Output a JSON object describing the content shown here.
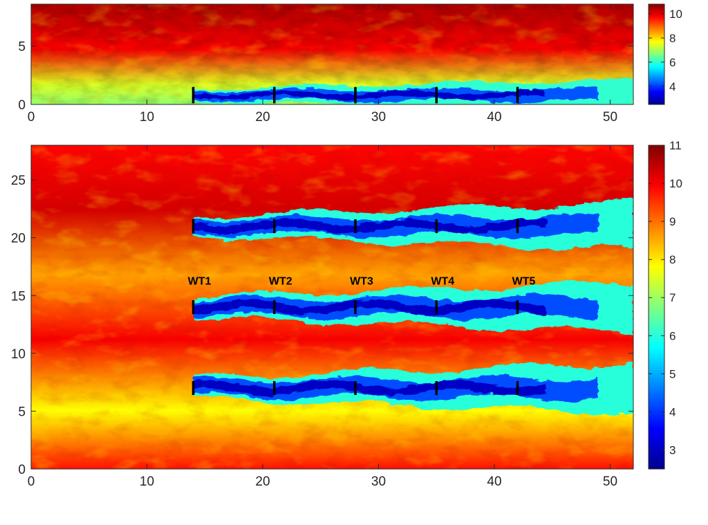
{
  "colors": {
    "scale": [
      "#00008f",
      "#0000ff",
      "#0080ff",
      "#00ffff",
      "#80ff80",
      "#ffff00",
      "#ff8000",
      "#ff0000",
      "#800000"
    ],
    "axis": "#262626",
    "turbine": "#000000"
  },
  "chart_data": [
    {
      "type": "heatmap",
      "view": "side",
      "title": "",
      "xlabel": "",
      "ylabel": "",
      "xlim": [
        0,
        52
      ],
      "ylim": [
        0,
        8.6
      ],
      "xticks": [
        "0",
        "10",
        "20",
        "30",
        "40",
        "50"
      ],
      "yticks": [
        "0",
        "5"
      ],
      "colorbar": {
        "range": [
          2.5,
          10.8
        ],
        "ticks": [
          "4",
          "6",
          "8",
          "10"
        ]
      },
      "turbines": [
        {
          "x": 14,
          "y_range": [
            0.1,
            1.5
          ]
        },
        {
          "x": 21,
          "y_range": [
            0.1,
            1.5
          ]
        },
        {
          "x": 28,
          "y_range": [
            0.1,
            1.5
          ]
        },
        {
          "x": 35,
          "y_range": [
            0.1,
            1.5
          ]
        },
        {
          "x": 42,
          "y_range": [
            0.1,
            1.5
          ]
        }
      ],
      "wake_bands": [
        {
          "x_start": 14,
          "x_end": 52,
          "y_center": 0.8,
          "half_width": 0.55,
          "min_value": 3.0
        }
      ],
      "freestream": {
        "low": 6.8,
        "high": 10.4
      }
    },
    {
      "type": "heatmap",
      "view": "top",
      "title": "",
      "xlabel": "",
      "ylabel": "",
      "xlim": [
        0,
        52
      ],
      "ylim": [
        0,
        28
      ],
      "xticks": [
        "0",
        "10",
        "20",
        "30",
        "40",
        "50"
      ],
      "yticks": [
        "0",
        "5",
        "10",
        "15",
        "20",
        "25"
      ],
      "colorbar": {
        "range": [
          2.5,
          11
        ],
        "ticks": [
          "3",
          "4",
          "5",
          "6",
          "7",
          "8",
          "9",
          "10",
          "11"
        ]
      },
      "turbine_labels": [
        "WT1",
        "WT2",
        "WT3",
        "WT4",
        "WT5"
      ],
      "label_y": 16.3,
      "turbine_x": [
        14,
        21,
        28,
        35,
        42
      ],
      "rows": [
        21,
        14,
        7
      ],
      "rotor_half_span": 0.6,
      "wake_bands": [
        {
          "x_start": 14,
          "x_end": 52,
          "y_center": 21,
          "half_width": 0.85,
          "min_value": 3.0
        },
        {
          "x_start": 14,
          "x_end": 52,
          "y_center": 14,
          "half_width": 0.9,
          "min_value": 3.0
        },
        {
          "x_start": 14,
          "x_end": 52,
          "y_center": 7,
          "half_width": 0.9,
          "min_value": 3.0
        }
      ],
      "freestream": {
        "low": 7.0,
        "high": 10.3
      }
    }
  ]
}
